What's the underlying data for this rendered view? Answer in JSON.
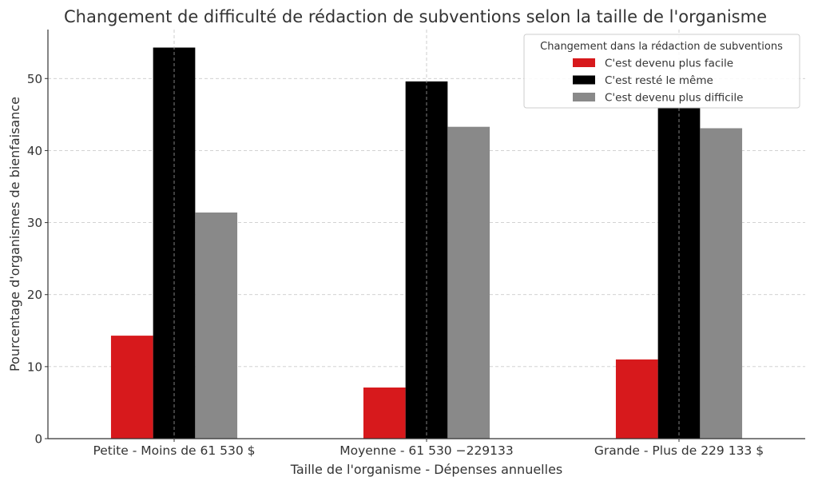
{
  "chart_data": {
    "type": "bar",
    "title": "Changement de difficulté de rédaction de subventions selon la taille de l'organisme",
    "xlabel": "Taille de l'organisme - Dépenses annuelles",
    "ylabel": "Pourcentage d'organismes de bienfaisance",
    "categories": [
      "Petite - Moins de 61 530 $",
      "Moyenne - 61 530 −229133",
      "Grande - Plus de 229 133 $"
    ],
    "series": [
      {
        "name": "C'est devenu plus facile",
        "color": "#d7191c",
        "values": [
          14.3,
          7.1,
          11.0
        ]
      },
      {
        "name": "C'est resté le même",
        "color": "#000000",
        "values": [
          54.3,
          49.6,
          46.0
        ]
      },
      {
        "name": "C'est devenu plus difficile",
        "color": "#898989",
        "values": [
          31.4,
          43.3,
          43.1
        ]
      }
    ],
    "ylim": [
      0,
      56.8
    ],
    "yticks": [
      0,
      10,
      20,
      30,
      40,
      50
    ],
    "grid": true,
    "legend": {
      "title": "Changement dans la rédaction de subventions",
      "placement": "top-right"
    }
  }
}
